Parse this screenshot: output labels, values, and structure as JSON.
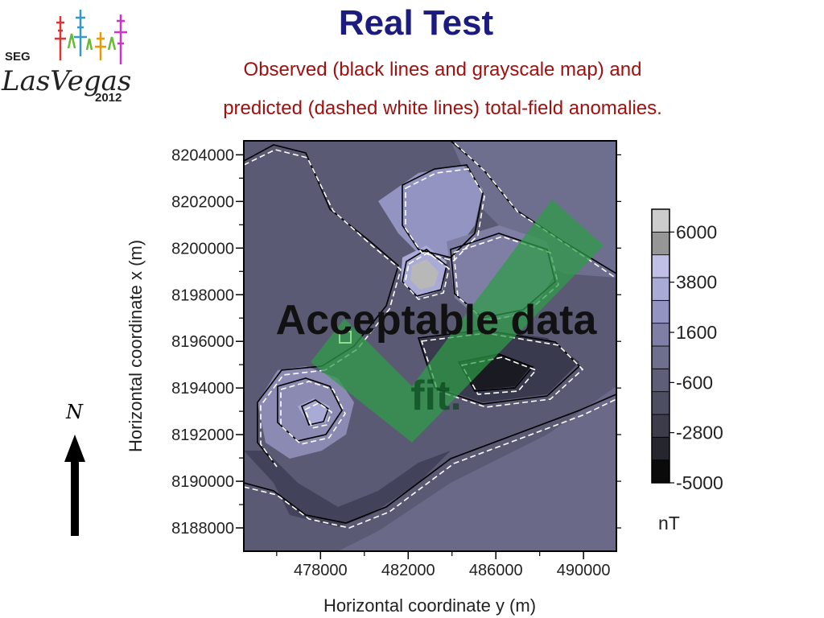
{
  "header": {
    "title": "Real Test",
    "subtitle_line1": "Observed (black lines and grayscale map) and",
    "subtitle_line2": "predicted (dashed white lines) total-field anomalies."
  },
  "logo": {
    "text_seg": "SEG",
    "text_city": "LasVegas",
    "text_year": "2012"
  },
  "annotation": {
    "line1": "Acceptable data",
    "line2": "fit.",
    "check_color": "#2e9d48"
  },
  "north": {
    "label": "N",
    "icon": "north-arrow-icon"
  },
  "chart_data": {
    "type": "heatmap",
    "xlabel": "Horizontal coordinate y (m)",
    "ylabel": "Horizontal coordinate x (m)",
    "xlim": [
      474500,
      491500
    ],
    "ylim": [
      8187000,
      8204600
    ],
    "x_ticks": [
      478000,
      482000,
      486000,
      490000
    ],
    "y_ticks": [
      8188000,
      8190000,
      8192000,
      8194000,
      8196000,
      8198000,
      8200000,
      8202000,
      8204000
    ],
    "colorbar": {
      "unit": "nT",
      "tick_labels": [
        "6000",
        "3800",
        "1600",
        "-600",
        "-2800",
        "-5000"
      ],
      "colors": [
        "#0a0a0a",
        "#26262e",
        "#3c3c4a",
        "#4e4e62",
        "#5e5e78",
        "#6e6e8e",
        "#7f7fa6",
        "#9494c2",
        "#aaaad6",
        "#c0c0e6",
        "#969696",
        "#cccccc"
      ]
    },
    "contours": {
      "observed": "black solid lines",
      "predicted": "white dashed lines"
    }
  }
}
